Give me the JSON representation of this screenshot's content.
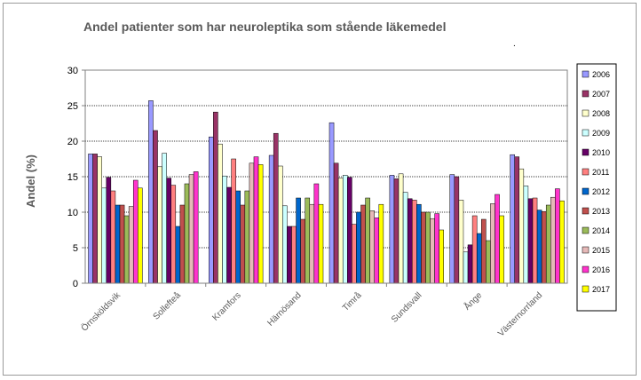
{
  "chart_data": {
    "type": "bar",
    "title": "Andel patienter som har neuroleptika som stående läkemedel",
    "xlabel": "",
    "ylabel": "Andel (%)",
    "ylim": [
      0,
      30
    ],
    "yticks": [
      "0",
      "5",
      "10",
      "15",
      "20",
      "25",
      "30"
    ],
    "grid": true,
    "legend_position": "right",
    "footnote_mark": ".",
    "categories": [
      "Örnsköldsvik",
      "Sollefteå",
      "Kramfors",
      "Härnösand",
      "Timrå",
      "Sundsvall",
      "Ånge",
      "Västernorrland"
    ],
    "series": [
      {
        "name": "2006",
        "color": "#9999ff",
        "values": [
          18.2,
          25.7,
          20.6,
          18.0,
          22.6,
          15.2,
          15.3,
          18.1
        ]
      },
      {
        "name": "2007",
        "color": "#993366",
        "values": [
          18.2,
          21.5,
          24.1,
          21.1,
          16.9,
          14.7,
          15.0,
          17.8
        ]
      },
      {
        "name": "2008",
        "color": "#ffffcc",
        "values": [
          17.8,
          16.4,
          19.6,
          16.5,
          14.8,
          15.4,
          11.7,
          16.1
        ]
      },
      {
        "name": "2009",
        "color": "#ccffff",
        "values": [
          13.4,
          18.3,
          15.1,
          10.9,
          15.2,
          12.8,
          4.4,
          13.7
        ]
      },
      {
        "name": "2010",
        "color": "#660066",
        "values": [
          14.9,
          14.8,
          13.5,
          8.0,
          14.9,
          11.9,
          5.4,
          11.9
        ]
      },
      {
        "name": "2011",
        "color": "#ff8080",
        "values": [
          13.0,
          13.8,
          17.5,
          8.0,
          8.3,
          11.7,
          9.5,
          12.0
        ]
      },
      {
        "name": "2012",
        "color": "#0066cc",
        "values": [
          11.0,
          8.0,
          13.0,
          12.0,
          10.0,
          11.1,
          7.0,
          10.3
        ]
      },
      {
        "name": "2013",
        "color": "#c0504d",
        "values": [
          11.0,
          11.0,
          11.0,
          9.0,
          11.0,
          10.0,
          9.0,
          10.1
        ]
      },
      {
        "name": "2014",
        "color": "#9bbb59",
        "values": [
          9.5,
          14.0,
          13.0,
          12.0,
          12.0,
          10.0,
          6.0,
          11.0
        ]
      },
      {
        "name": "2015",
        "color": "#e6b9b8",
        "values": [
          10.8,
          15.3,
          16.9,
          11.1,
          10.2,
          9.1,
          11.2,
          12.1
        ]
      },
      {
        "name": "2016",
        "color": "#ff33cc",
        "values": [
          14.5,
          15.7,
          17.8,
          14.0,
          9.2,
          9.8,
          12.5,
          13.3
        ]
      },
      {
        "name": "2017",
        "color": "#ffff00",
        "values": [
          13.4,
          0.0,
          16.7,
          11.1,
          11.1,
          7.5,
          9.5,
          11.6
        ]
      }
    ]
  }
}
